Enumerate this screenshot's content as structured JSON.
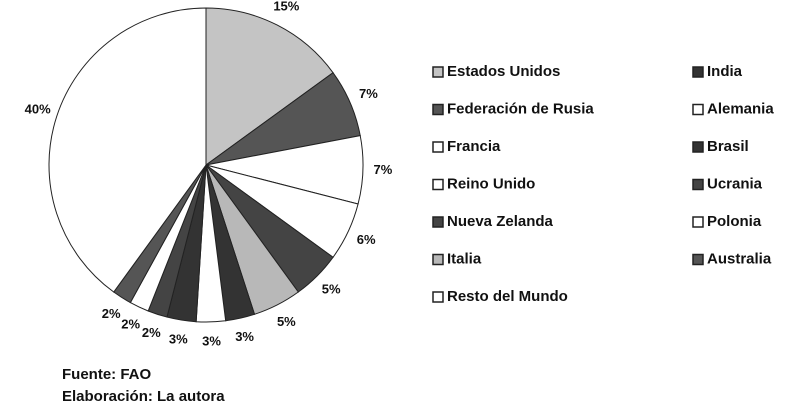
{
  "chart_data": {
    "type": "pie",
    "categories": [
      "Estados Unidos",
      "Federación de Rusia",
      "Francia",
      "Reino Unido",
      "Nueva Zelanda",
      "Italia",
      "India",
      "Alemania",
      "Brasil",
      "Ucrania",
      "Polonia",
      "Australia",
      "Resto del Mundo"
    ],
    "values": [
      15,
      7,
      7,
      6,
      5,
      5,
      3,
      3,
      3,
      2,
      2,
      2,
      40
    ],
    "value_labels": [
      "15%",
      "7%",
      "7%",
      "6%",
      "5%",
      "5%",
      "3%",
      "3%",
      "3%",
      "2%",
      "2%",
      "2%",
      "40%"
    ],
    "colors": [
      "#c4c4c4",
      "#555555",
      "#ffffff",
      "#ffffff",
      "#444444",
      "#b8b8b8",
      "#333333",
      "#ffffff",
      "#333333",
      "#444444",
      "#ffffff",
      "#555555",
      "#ffffff"
    ],
    "source": "Fuente:  FAO",
    "credit": "Elaboración:  La autora"
  }
}
